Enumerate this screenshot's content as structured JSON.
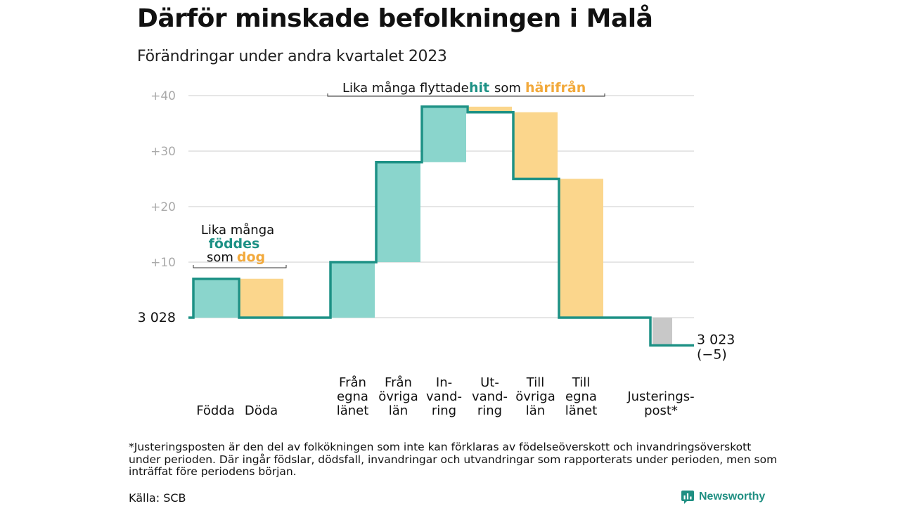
{
  "title": "Därför minskade befolkningen i Malå",
  "subtitle": "Förändringar under andra kvartalet 2023",
  "chart_data": {
    "type": "waterfall",
    "start_value": 3028,
    "start_label": "3  028",
    "end_value": 3023,
    "end_label": "3 023",
    "end_change_label": "(−5)",
    "ylim": [
      -5,
      42
    ],
    "yticks": [
      {
        "value": 10,
        "label": "+10"
      },
      {
        "value": 20,
        "label": "+20"
      },
      {
        "value": 30,
        "label": "+30"
      },
      {
        "value": 40,
        "label": "+40"
      }
    ],
    "steps": [
      {
        "label": "Födda",
        "change": 7,
        "kind": "in"
      },
      {
        "label": "Döda",
        "change": -7,
        "kind": "out"
      },
      {
        "label": "",
        "change": 0,
        "kind": "gap"
      },
      {
        "label": "Från egna länet",
        "label_lines": [
          "Från",
          "egna",
          "länet"
        ],
        "change": 10,
        "kind": "in"
      },
      {
        "label": "Från övriga län",
        "label_lines": [
          "Från",
          "övriga",
          "län"
        ],
        "change": 18,
        "kind": "in"
      },
      {
        "label": "Invandring",
        "label_lines": [
          "In-",
          "vand-",
          "ring"
        ],
        "change": 10,
        "kind": "in"
      },
      {
        "label": "Utvandring",
        "label_lines": [
          "Ut-",
          "vand-",
          "ring"
        ],
        "change": -1,
        "kind": "out"
      },
      {
        "label": "Till övriga län",
        "label_lines": [
          "Till",
          "övriga",
          "län"
        ],
        "change": -12,
        "kind": "out"
      },
      {
        "label": "Till egna länet",
        "label_lines": [
          "Till",
          "egna",
          "länet"
        ],
        "change": -25,
        "kind": "out"
      },
      {
        "label": "",
        "change": 0,
        "kind": "gap"
      },
      {
        "label": "Justeringspost*",
        "label_lines": [
          "Justerings-",
          "post*"
        ],
        "change": -5,
        "kind": "adjust"
      }
    ],
    "colors": {
      "in": "#8ad5cc",
      "out": "#fbd68c",
      "adjust": "#c8c8c8",
      "line": "#1d9185",
      "grid": "#dddddd",
      "tick": "#aaaaaa",
      "teal_text": "#1d9185",
      "orange_text": "#f2a93b"
    },
    "annotations": [
      {
        "id": "birth",
        "parts": [
          {
            "text": "Lika många",
            "color": "#111111",
            "bold": false
          },
          {
            "text": "föddes",
            "color": "#1d9185",
            "bold": true
          },
          {
            "text": "som",
            "color": "#111111",
            "bold": false
          },
          {
            "text": "dog",
            "color": "#f2a93b",
            "bold": true
          }
        ]
      },
      {
        "id": "migration",
        "parts": [
          {
            "text": "Lika många flyttade",
            "color": "#111111",
            "bold": false
          },
          {
            "text": "hit",
            "color": "#1d9185",
            "bold": true
          },
          {
            "text": "som",
            "color": "#111111",
            "bold": false
          },
          {
            "text": "härifrån",
            "color": "#f2a93b",
            "bold": true
          }
        ]
      }
    ]
  },
  "footnote": "*Justeringsposten är den del av folkökningen som inte kan förklaras av födelseöverskott och invandringsöverskott under perioden. Där ingår födslar, dödsfall, invandringar och utvandringar som rapporterats under perioden, men som inträffat före periodens början.",
  "source": "Källa: SCB",
  "brand": {
    "name": "Newsworthy",
    "icon": "newsworthy-logo-icon",
    "color": "#1f8f82"
  }
}
